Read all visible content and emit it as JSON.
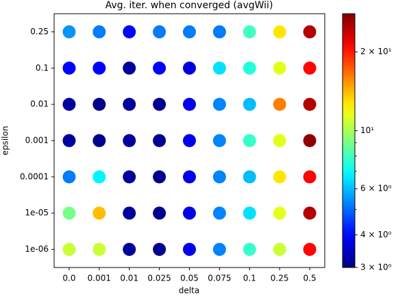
{
  "chart_data": {
    "type": "scatter",
    "title": "Avg. iter. when converged (avgWii)",
    "x_label": "delta",
    "y_label": "epsilon",
    "x_categories": [
      "0.0",
      "0.001",
      "0.01",
      "0.025",
      "0.05",
      "0.075",
      "0.1",
      "0.25",
      "0.5"
    ],
    "y_categories": [
      "1e-06",
      "1e-05",
      "0.0001",
      "0.001",
      "0.01",
      "0.1",
      "0.25"
    ],
    "values": [
      [
        10.8,
        10.8,
        3.2,
        3.1,
        3.8,
        5.3,
        7.8,
        10.8,
        21
      ],
      [
        9,
        14,
        3.2,
        3.1,
        3.8,
        5.3,
        6.5,
        11.4,
        25
      ],
      [
        5.2,
        6.8,
        3.2,
        3.1,
        3.8,
        5.3,
        6,
        12.8,
        21
      ],
      [
        3.2,
        3.1,
        3.2,
        3.1,
        3.8,
        5.3,
        7.8,
        11.4,
        27
      ],
      [
        3.2,
        3.1,
        3.2,
        3.1,
        3.8,
        5.3,
        6,
        16,
        25
      ],
      [
        4,
        4,
        3.2,
        4,
        3.7,
        6.5,
        7.5,
        11.4,
        21
      ],
      [
        5.5,
        5.2,
        4,
        5.2,
        5.2,
        5.2,
        8,
        12.8,
        25
      ]
    ],
    "colormap": "jet",
    "colorbar": {
      "scale": "log",
      "lim": [
        3,
        28
      ],
      "ticks": [
        {
          "value": 3,
          "label": "3 × 10⁰"
        },
        {
          "value": 4,
          "label": "4 × 10⁰"
        },
        {
          "value": 6,
          "label": "6 × 10⁰"
        },
        {
          "value": 10,
          "label": "10¹"
        },
        {
          "value": 20,
          "label": "2 × 10¹"
        }
      ],
      "minor_ticks": [
        5,
        7,
        8,
        9
      ]
    }
  }
}
